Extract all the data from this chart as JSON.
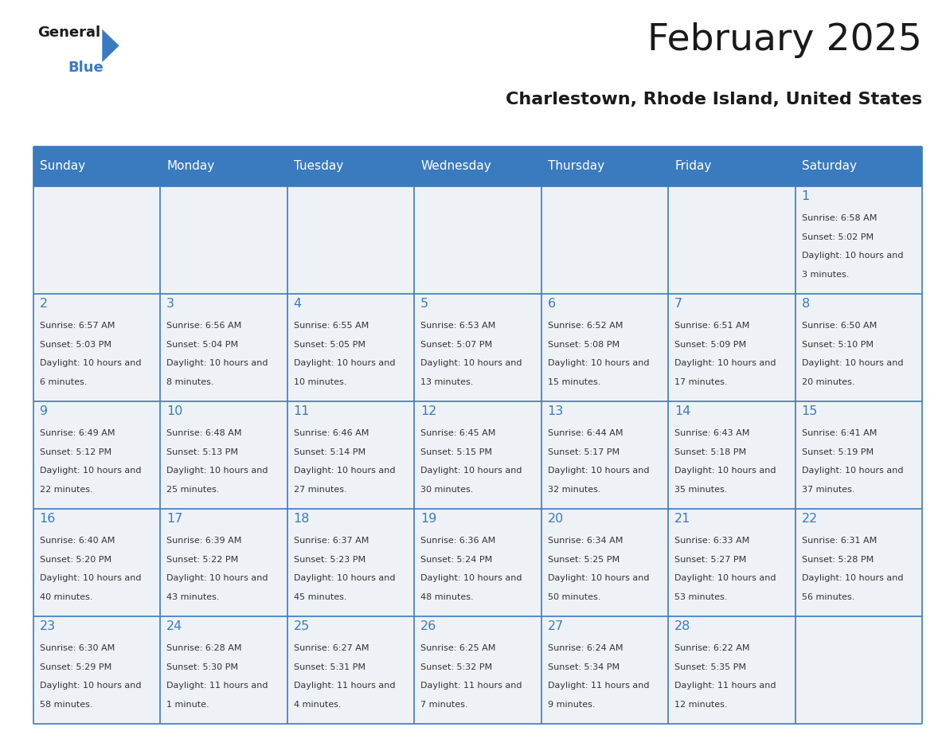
{
  "title": "February 2025",
  "subtitle": "Charlestown, Rhode Island, United States",
  "header_bg_color": "#3a7bbf",
  "header_text_color": "#ffffff",
  "cell_bg_color_light": "#eef2f7",
  "day_number_color": "#3a7bbf",
  "cell_text_color": "#333333",
  "border_color": "#3a7bbf",
  "days_of_week": [
    "Sunday",
    "Monday",
    "Tuesday",
    "Wednesday",
    "Thursday",
    "Friday",
    "Saturday"
  ],
  "calendar_data": [
    [
      null,
      null,
      null,
      null,
      null,
      null,
      {
        "day": "1",
        "sunrise": "6:58 AM",
        "sunset": "5:02 PM",
        "daylight": "10 hours and 3 minutes."
      }
    ],
    [
      {
        "day": "2",
        "sunrise": "6:57 AM",
        "sunset": "5:03 PM",
        "daylight": "10 hours and 6 minutes."
      },
      {
        "day": "3",
        "sunrise": "6:56 AM",
        "sunset": "5:04 PM",
        "daylight": "10 hours and 8 minutes."
      },
      {
        "day": "4",
        "sunrise": "6:55 AM",
        "sunset": "5:05 PM",
        "daylight": "10 hours and 10 minutes."
      },
      {
        "day": "5",
        "sunrise": "6:53 AM",
        "sunset": "5:07 PM",
        "daylight": "10 hours and 13 minutes."
      },
      {
        "day": "6",
        "sunrise": "6:52 AM",
        "sunset": "5:08 PM",
        "daylight": "10 hours and 15 minutes."
      },
      {
        "day": "7",
        "sunrise": "6:51 AM",
        "sunset": "5:09 PM",
        "daylight": "10 hours and 17 minutes."
      },
      {
        "day": "8",
        "sunrise": "6:50 AM",
        "sunset": "5:10 PM",
        "daylight": "10 hours and 20 minutes."
      }
    ],
    [
      {
        "day": "9",
        "sunrise": "6:49 AM",
        "sunset": "5:12 PM",
        "daylight": "10 hours and 22 minutes."
      },
      {
        "day": "10",
        "sunrise": "6:48 AM",
        "sunset": "5:13 PM",
        "daylight": "10 hours and 25 minutes."
      },
      {
        "day": "11",
        "sunrise": "6:46 AM",
        "sunset": "5:14 PM",
        "daylight": "10 hours and 27 minutes."
      },
      {
        "day": "12",
        "sunrise": "6:45 AM",
        "sunset": "5:15 PM",
        "daylight": "10 hours and 30 minutes."
      },
      {
        "day": "13",
        "sunrise": "6:44 AM",
        "sunset": "5:17 PM",
        "daylight": "10 hours and 32 minutes."
      },
      {
        "day": "14",
        "sunrise": "6:43 AM",
        "sunset": "5:18 PM",
        "daylight": "10 hours and 35 minutes."
      },
      {
        "day": "15",
        "sunrise": "6:41 AM",
        "sunset": "5:19 PM",
        "daylight": "10 hours and 37 minutes."
      }
    ],
    [
      {
        "day": "16",
        "sunrise": "6:40 AM",
        "sunset": "5:20 PM",
        "daylight": "10 hours and 40 minutes."
      },
      {
        "day": "17",
        "sunrise": "6:39 AM",
        "sunset": "5:22 PM",
        "daylight": "10 hours and 43 minutes."
      },
      {
        "day": "18",
        "sunrise": "6:37 AM",
        "sunset": "5:23 PM",
        "daylight": "10 hours and 45 minutes."
      },
      {
        "day": "19",
        "sunrise": "6:36 AM",
        "sunset": "5:24 PM",
        "daylight": "10 hours and 48 minutes."
      },
      {
        "day": "20",
        "sunrise": "6:34 AM",
        "sunset": "5:25 PM",
        "daylight": "10 hours and 50 minutes."
      },
      {
        "day": "21",
        "sunrise": "6:33 AM",
        "sunset": "5:27 PM",
        "daylight": "10 hours and 53 minutes."
      },
      {
        "day": "22",
        "sunrise": "6:31 AM",
        "sunset": "5:28 PM",
        "daylight": "10 hours and 56 minutes."
      }
    ],
    [
      {
        "day": "23",
        "sunrise": "6:30 AM",
        "sunset": "5:29 PM",
        "daylight": "10 hours and 58 minutes."
      },
      {
        "day": "24",
        "sunrise": "6:28 AM",
        "sunset": "5:30 PM",
        "daylight": "11 hours and 1 minute."
      },
      {
        "day": "25",
        "sunrise": "6:27 AM",
        "sunset": "5:31 PM",
        "daylight": "11 hours and 4 minutes."
      },
      {
        "day": "26",
        "sunrise": "6:25 AM",
        "sunset": "5:32 PM",
        "daylight": "11 hours and 7 minutes."
      },
      {
        "day": "27",
        "sunrise": "6:24 AM",
        "sunset": "5:34 PM",
        "daylight": "11 hours and 9 minutes."
      },
      {
        "day": "28",
        "sunrise": "6:22 AM",
        "sunset": "5:35 PM",
        "daylight": "11 hours and 12 minutes."
      },
      null
    ]
  ],
  "logo_general_color": "#1a1a1a",
  "logo_blue_color": "#3a7bbf",
  "logo_triangle_color": "#3a7bbf",
  "title_color": "#1a1a1a",
  "subtitle_color": "#1a1a1a"
}
